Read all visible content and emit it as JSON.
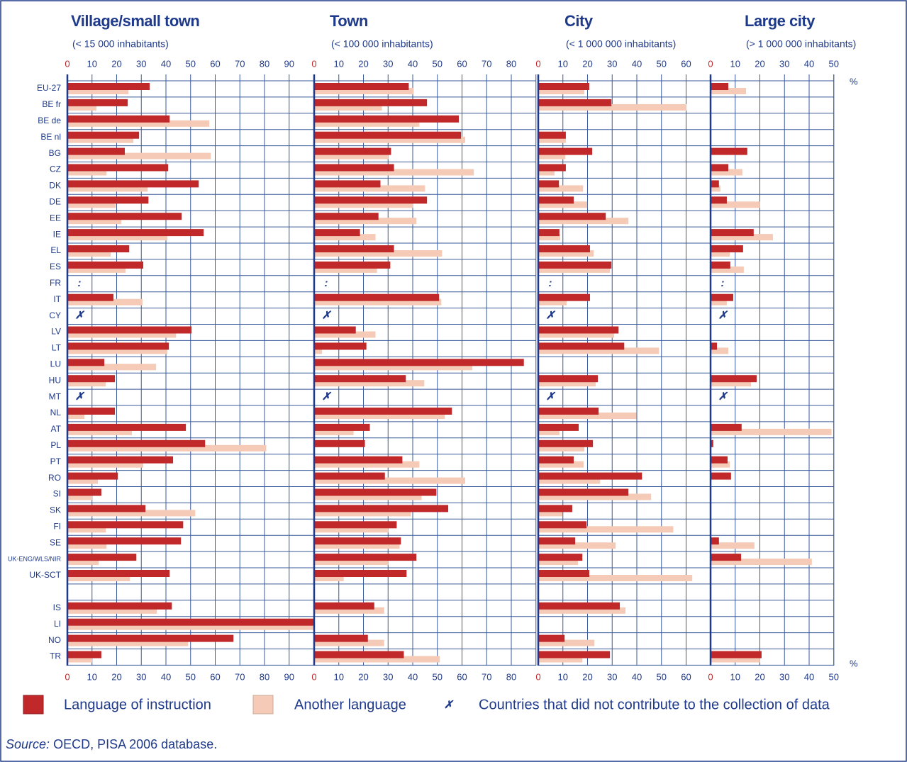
{
  "categories": [
    "EU-27",
    "BE fr",
    "BE de",
    "BE nl",
    "BG",
    "CZ",
    "DK",
    "DE",
    "EE",
    "IE",
    "EL",
    "ES",
    "FR",
    "IT",
    "CY",
    "LV",
    "LT",
    "LU",
    "HU",
    "MT",
    "NL",
    "AT",
    "PL",
    "PT",
    "RO",
    "SI",
    "SK",
    "FI",
    "SE",
    "UK-ENG/WLS/NIR",
    "UK-SCT",
    null,
    "IS",
    "LI",
    "NO",
    "TR"
  ],
  "unit": "%",
  "legend_note": {
    "symbol": "✗",
    "text": "Countries that did not contribute to the collection of data"
  },
  "source": {
    "label": "Source:",
    "text": "OECD, PISA 2006 database."
  },
  "chart_data": [
    {
      "type": "bar",
      "orientation": "horizontal",
      "title": "Village/small town",
      "subtitle": "(< 15 000 inhabitants)",
      "xlim": [
        0,
        100
      ],
      "xticks": [
        0,
        10,
        20,
        30,
        40,
        50,
        60,
        70,
        80,
        90
      ],
      "grid": true,
      "series": [
        {
          "name": "Language of instruction",
          "color": "#c0282a",
          "values": [
            33.4,
            24.5,
            41.5,
            29.1,
            23.3,
            40.9,
            53.3,
            32.9,
            46.4,
            55.3,
            25.1,
            30.8,
            null,
            18.7,
            null,
            50.4,
            41.2,
            15.0,
            19.3,
            null,
            19.3,
            48.1,
            55.9,
            42.9,
            20.5,
            13.8,
            31.7,
            47.0,
            46.1,
            28.0,
            41.5,
            null,
            42.4,
            100,
            67.4,
            13.8
          ]
        },
        {
          "name": "Another language",
          "color": "#f5cbb7",
          "values": [
            24.8,
            11.8,
            57.6,
            26.8,
            58.2,
            15.9,
            32.6,
            19.6,
            21.9,
            40.6,
            17.6,
            23.6,
            null,
            30.5,
            null,
            44.1,
            40.6,
            36.0,
            15.6,
            null,
            6.9,
            26.2,
            80.7,
            30.8,
            12.4,
            10.1,
            51.9,
            15.6,
            15.9,
            12.7,
            25.4,
            null,
            36.3,
            100,
            49.0,
            10.1
          ]
        }
      ],
      "annotations": [
        {
          "category": "FR",
          "text": ":"
        },
        {
          "category": "CY",
          "text": "✗"
        },
        {
          "category": "MT",
          "text": "✗"
        }
      ]
    },
    {
      "type": "bar",
      "orientation": "horizontal",
      "title": "Town",
      "subtitle": "(< 100 000 inhabitants)",
      "xlim": [
        0,
        90
      ],
      "xticks": [
        0,
        10,
        20,
        30,
        40,
        50,
        60,
        70,
        80
      ],
      "grid": true,
      "series": [
        {
          "color": "#c0282a",
          "values": [
            38.4,
            45.8,
            58.7,
            59.6,
            31.2,
            32.4,
            26.9,
            45.8,
            26.1,
            18.6,
            32.4,
            30.9,
            null,
            50.7,
            null,
            16.9,
            21.2,
            85.1,
            37.2,
            null,
            55.9,
            22.6,
            20.6,
            35.8,
            28.7,
            49.6,
            54.4,
            33.5,
            35.2,
            41.5,
            37.5,
            null,
            24.4,
            null,
            21.8,
            36.4
          ]
        },
        {
          "color": "#f5cbb7",
          "values": [
            40.4,
            27.5,
            42.7,
            61.3,
            30.1,
            64.8,
            45.0,
            40.1,
            41.5,
            24.9,
            51.9,
            25.5,
            null,
            51.6,
            null,
            24.9,
            3.2,
            64.2,
            44.7,
            null,
            53.0,
            16.0,
            0,
            42.7,
            61.3,
            43.6,
            39.3,
            30.1,
            34.7,
            30.1,
            12.0,
            null,
            28.4,
            null,
            28.4,
            51.0
          ]
        }
      ],
      "annotations": [
        {
          "category": "FR",
          "text": ":"
        },
        {
          "category": "CY",
          "text": "✗"
        },
        {
          "category": "MT",
          "text": "✗"
        }
      ]
    },
    {
      "type": "bar",
      "orientation": "horizontal",
      "title": "City",
      "subtitle": "(< 1 000 000 inhabitants)",
      "xlim": [
        0,
        70
      ],
      "xticks": [
        0,
        10,
        20,
        30,
        40,
        50,
        60
      ],
      "grid": true,
      "series": [
        {
          "color": "#c0282a",
          "values": [
            20.7,
            29.7,
            null,
            11.2,
            21.9,
            11.2,
            8.4,
            14.4,
            27.4,
            8.6,
            21.0,
            29.7,
            null,
            21.0,
            null,
            32.6,
            34.9,
            null,
            24.2,
            null,
            24.5,
            16.4,
            22.2,
            14.4,
            42.1,
            36.6,
            13.8,
            19.6,
            15.0,
            17.9,
            20.7,
            null,
            33.1,
            null,
            10.7,
            29.1
          ]
        },
        {
          "color": "#f5cbb7",
          "values": [
            18.7,
            60.2,
            null,
            11.2,
            11.0,
            6.6,
            18.2,
            19.9,
            36.6,
            8.9,
            22.5,
            29.1,
            null,
            11.5,
            null,
            30.8,
            49.0,
            null,
            23.3,
            null,
            39.8,
            8.6,
            18.7,
            18.4,
            25.1,
            45.8,
            9.8,
            54.8,
            31.4,
            16.1,
            62.5,
            null,
            35.4,
            null,
            22.8,
            17.9
          ]
        }
      ],
      "annotations": [
        {
          "category": "FR",
          "text": ":"
        },
        {
          "category": "CY",
          "text": "✗"
        },
        {
          "category": "MT",
          "text": "✗"
        }
      ]
    },
    {
      "type": "bar",
      "orientation": "horizontal",
      "title": "Large city",
      "subtitle": "(> 1 000 000 inhabitants)",
      "xlim": [
        0,
        50
      ],
      "xticks": [
        0,
        10,
        20,
        30,
        40,
        50
      ],
      "grid": true,
      "series": [
        {
          "color": "#c0282a",
          "values": [
            7.2,
            null,
            null,
            null,
            14.9,
            7.2,
            3.4,
            6.6,
            null,
            17.5,
            13.2,
            8.0,
            null,
            9.2,
            null,
            null,
            2.6,
            null,
            18.7,
            null,
            null,
            12.6,
            1.1,
            6.9,
            8.3,
            null,
            null,
            null,
            3.4,
            12.4,
            null,
            null,
            null,
            null,
            null,
            20.7
          ]
        },
        {
          "color": "#f5cbb7",
          "values": [
            14.4,
            null,
            null,
            null,
            null,
            12.9,
            4.0,
            20.1,
            null,
            25.3,
            7.8,
            13.5,
            null,
            6.6,
            null,
            null,
            7.2,
            null,
            16.4,
            null,
            null,
            49.1,
            null,
            7.8,
            null,
            null,
            null,
            null,
            17.8,
            41.1,
            null,
            null,
            null,
            null,
            null,
            20.1
          ]
        }
      ],
      "annotations": [
        {
          "category": "FR",
          "text": ":"
        },
        {
          "category": "CY",
          "text": "✗"
        },
        {
          "category": "MT",
          "text": "✗"
        }
      ]
    }
  ]
}
